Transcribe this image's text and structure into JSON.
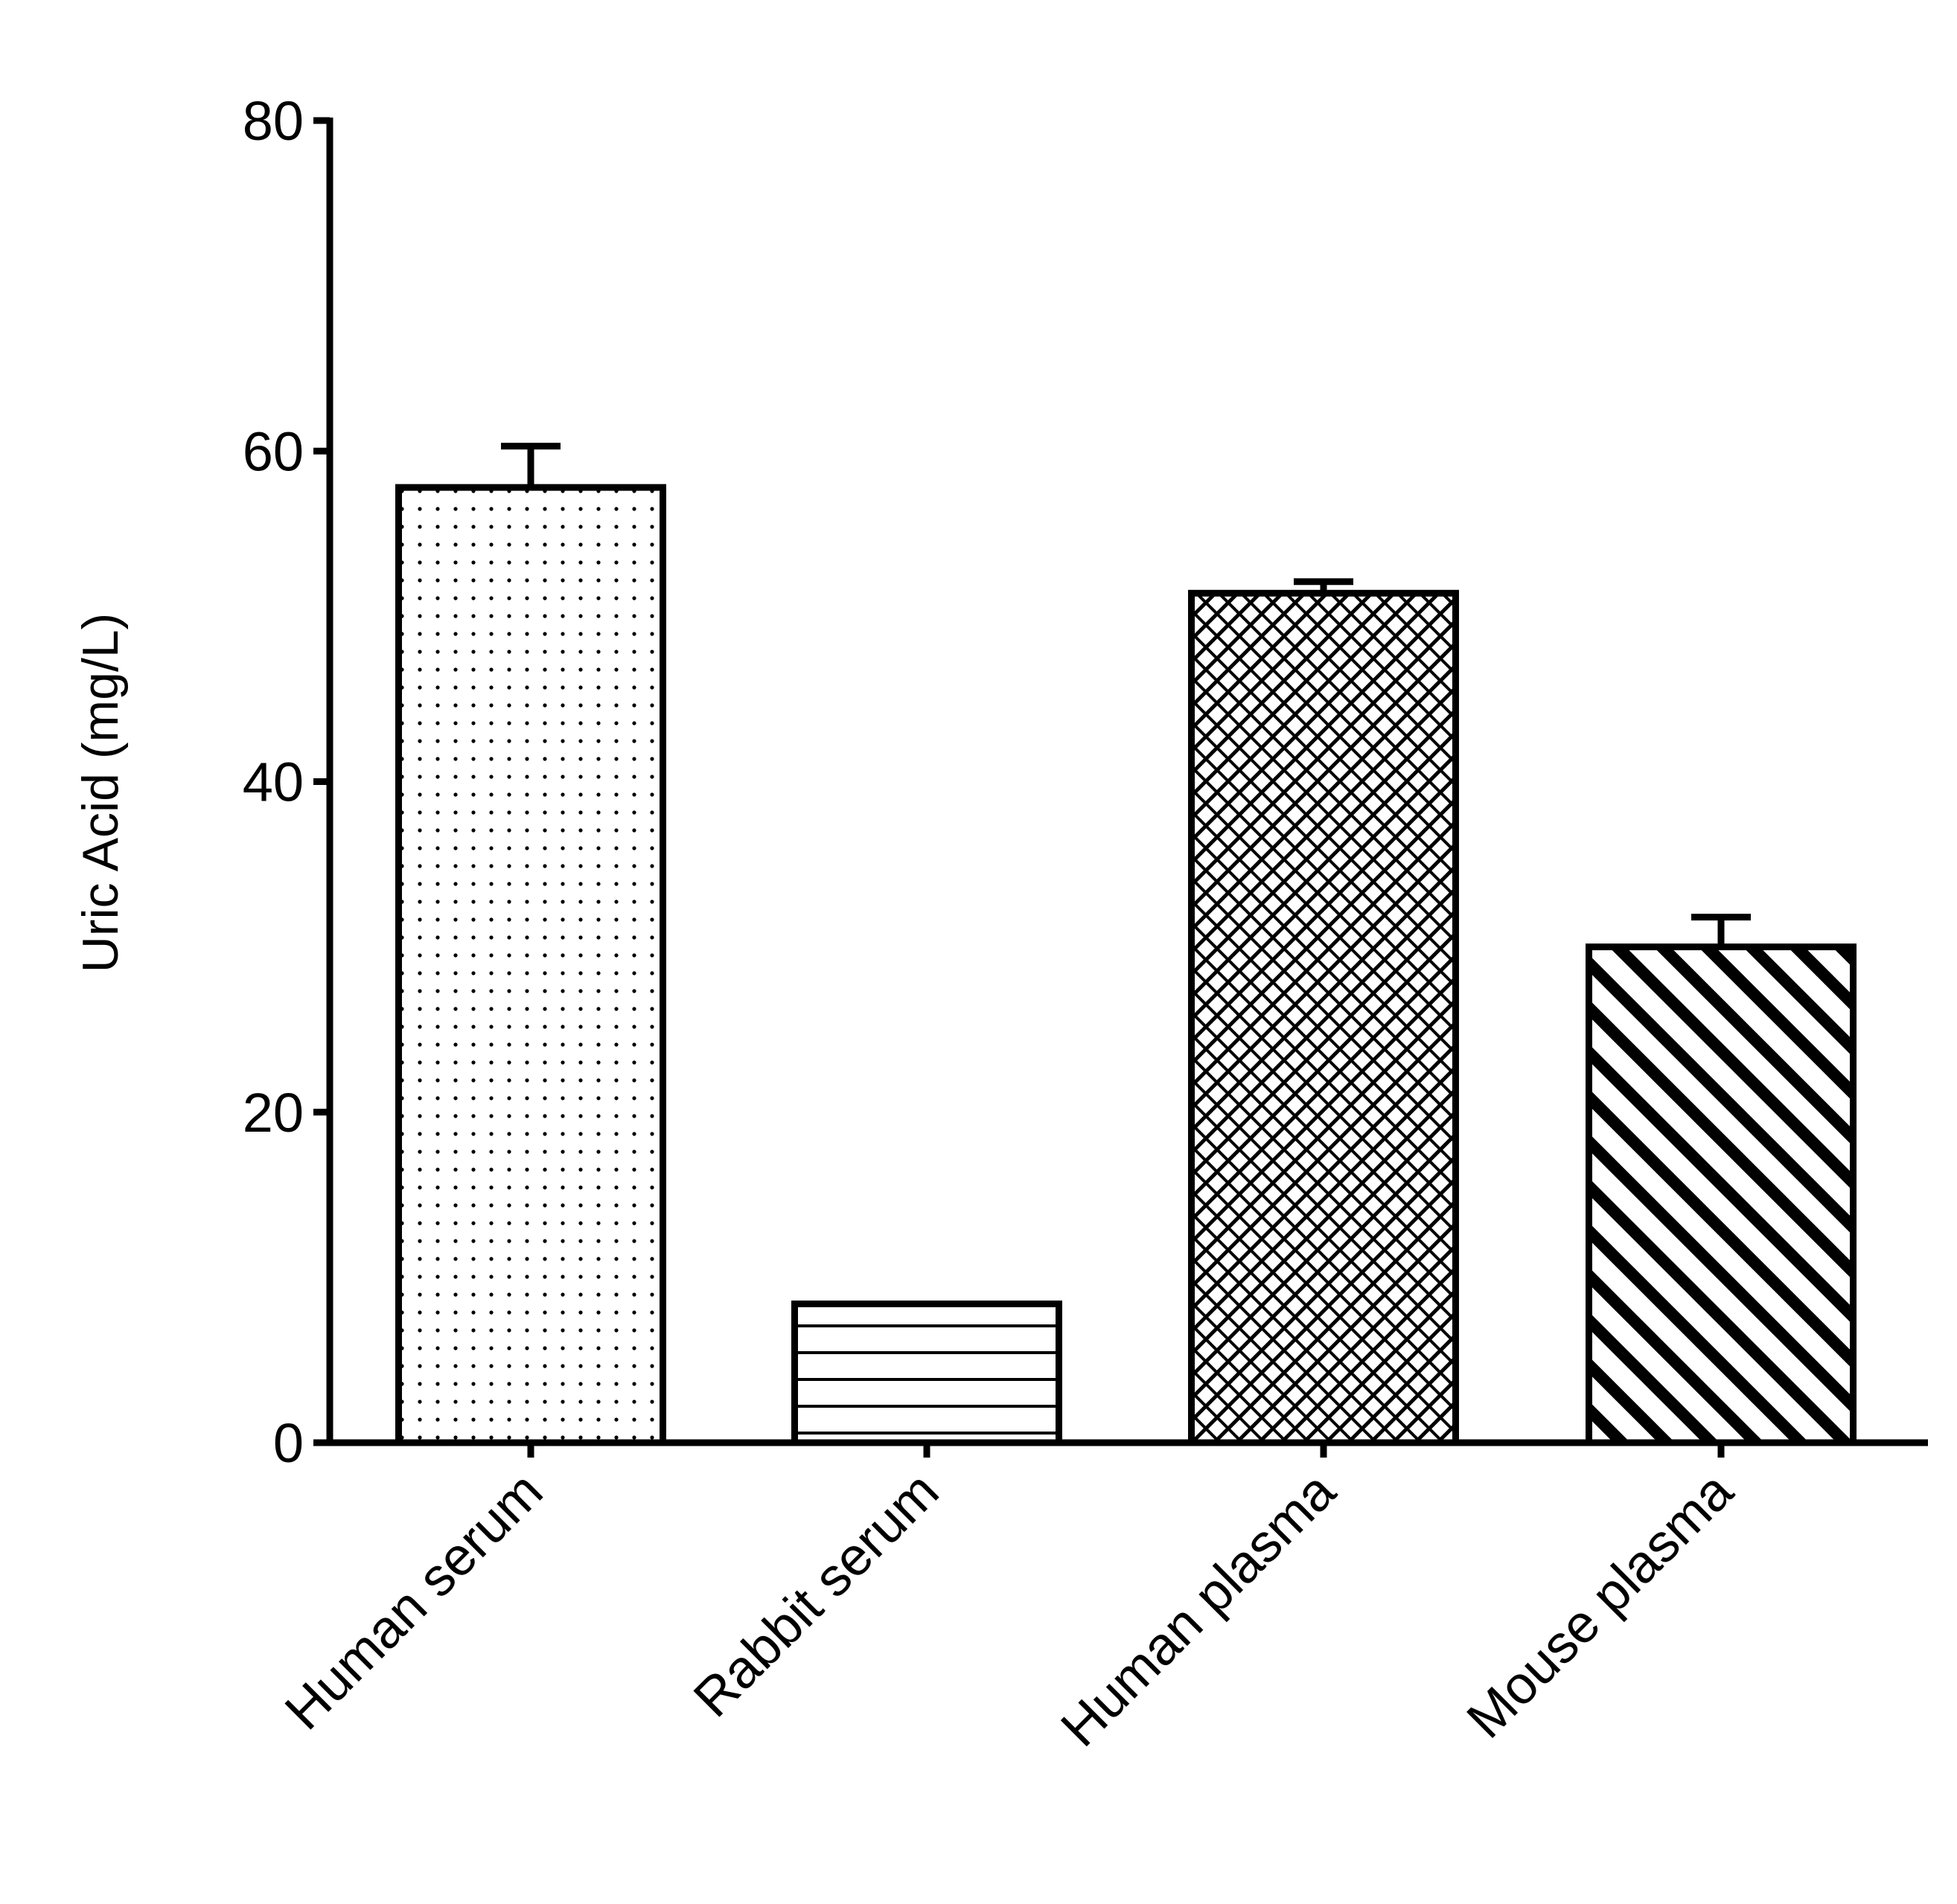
{
  "chart_data": {
    "type": "bar",
    "title": "",
    "xlabel": "",
    "ylabel": "Uric Acid (mg/L)",
    "ylim": [
      0,
      80
    ],
    "yticks": [
      0,
      20,
      40,
      60,
      80
    ],
    "ytick_labels": [
      "0",
      "20",
      "40",
      "60",
      "80"
    ],
    "categories": [
      "Human serum",
      "Rabbit serum",
      "Human plasma",
      "Mouse plasma"
    ],
    "values": [
      57.8,
      8.4,
      51.4,
      30.0
    ],
    "error_bars": [
      2.5,
      0,
      0.7,
      1.8
    ],
    "patterns": [
      "dots",
      "horizontal-lines",
      "crosshatch",
      "diagonal-stripes"
    ],
    "grid": false,
    "legend": "none",
    "colors": {
      "bar_fill": "#ffffff",
      "stroke": "#000000"
    }
  }
}
